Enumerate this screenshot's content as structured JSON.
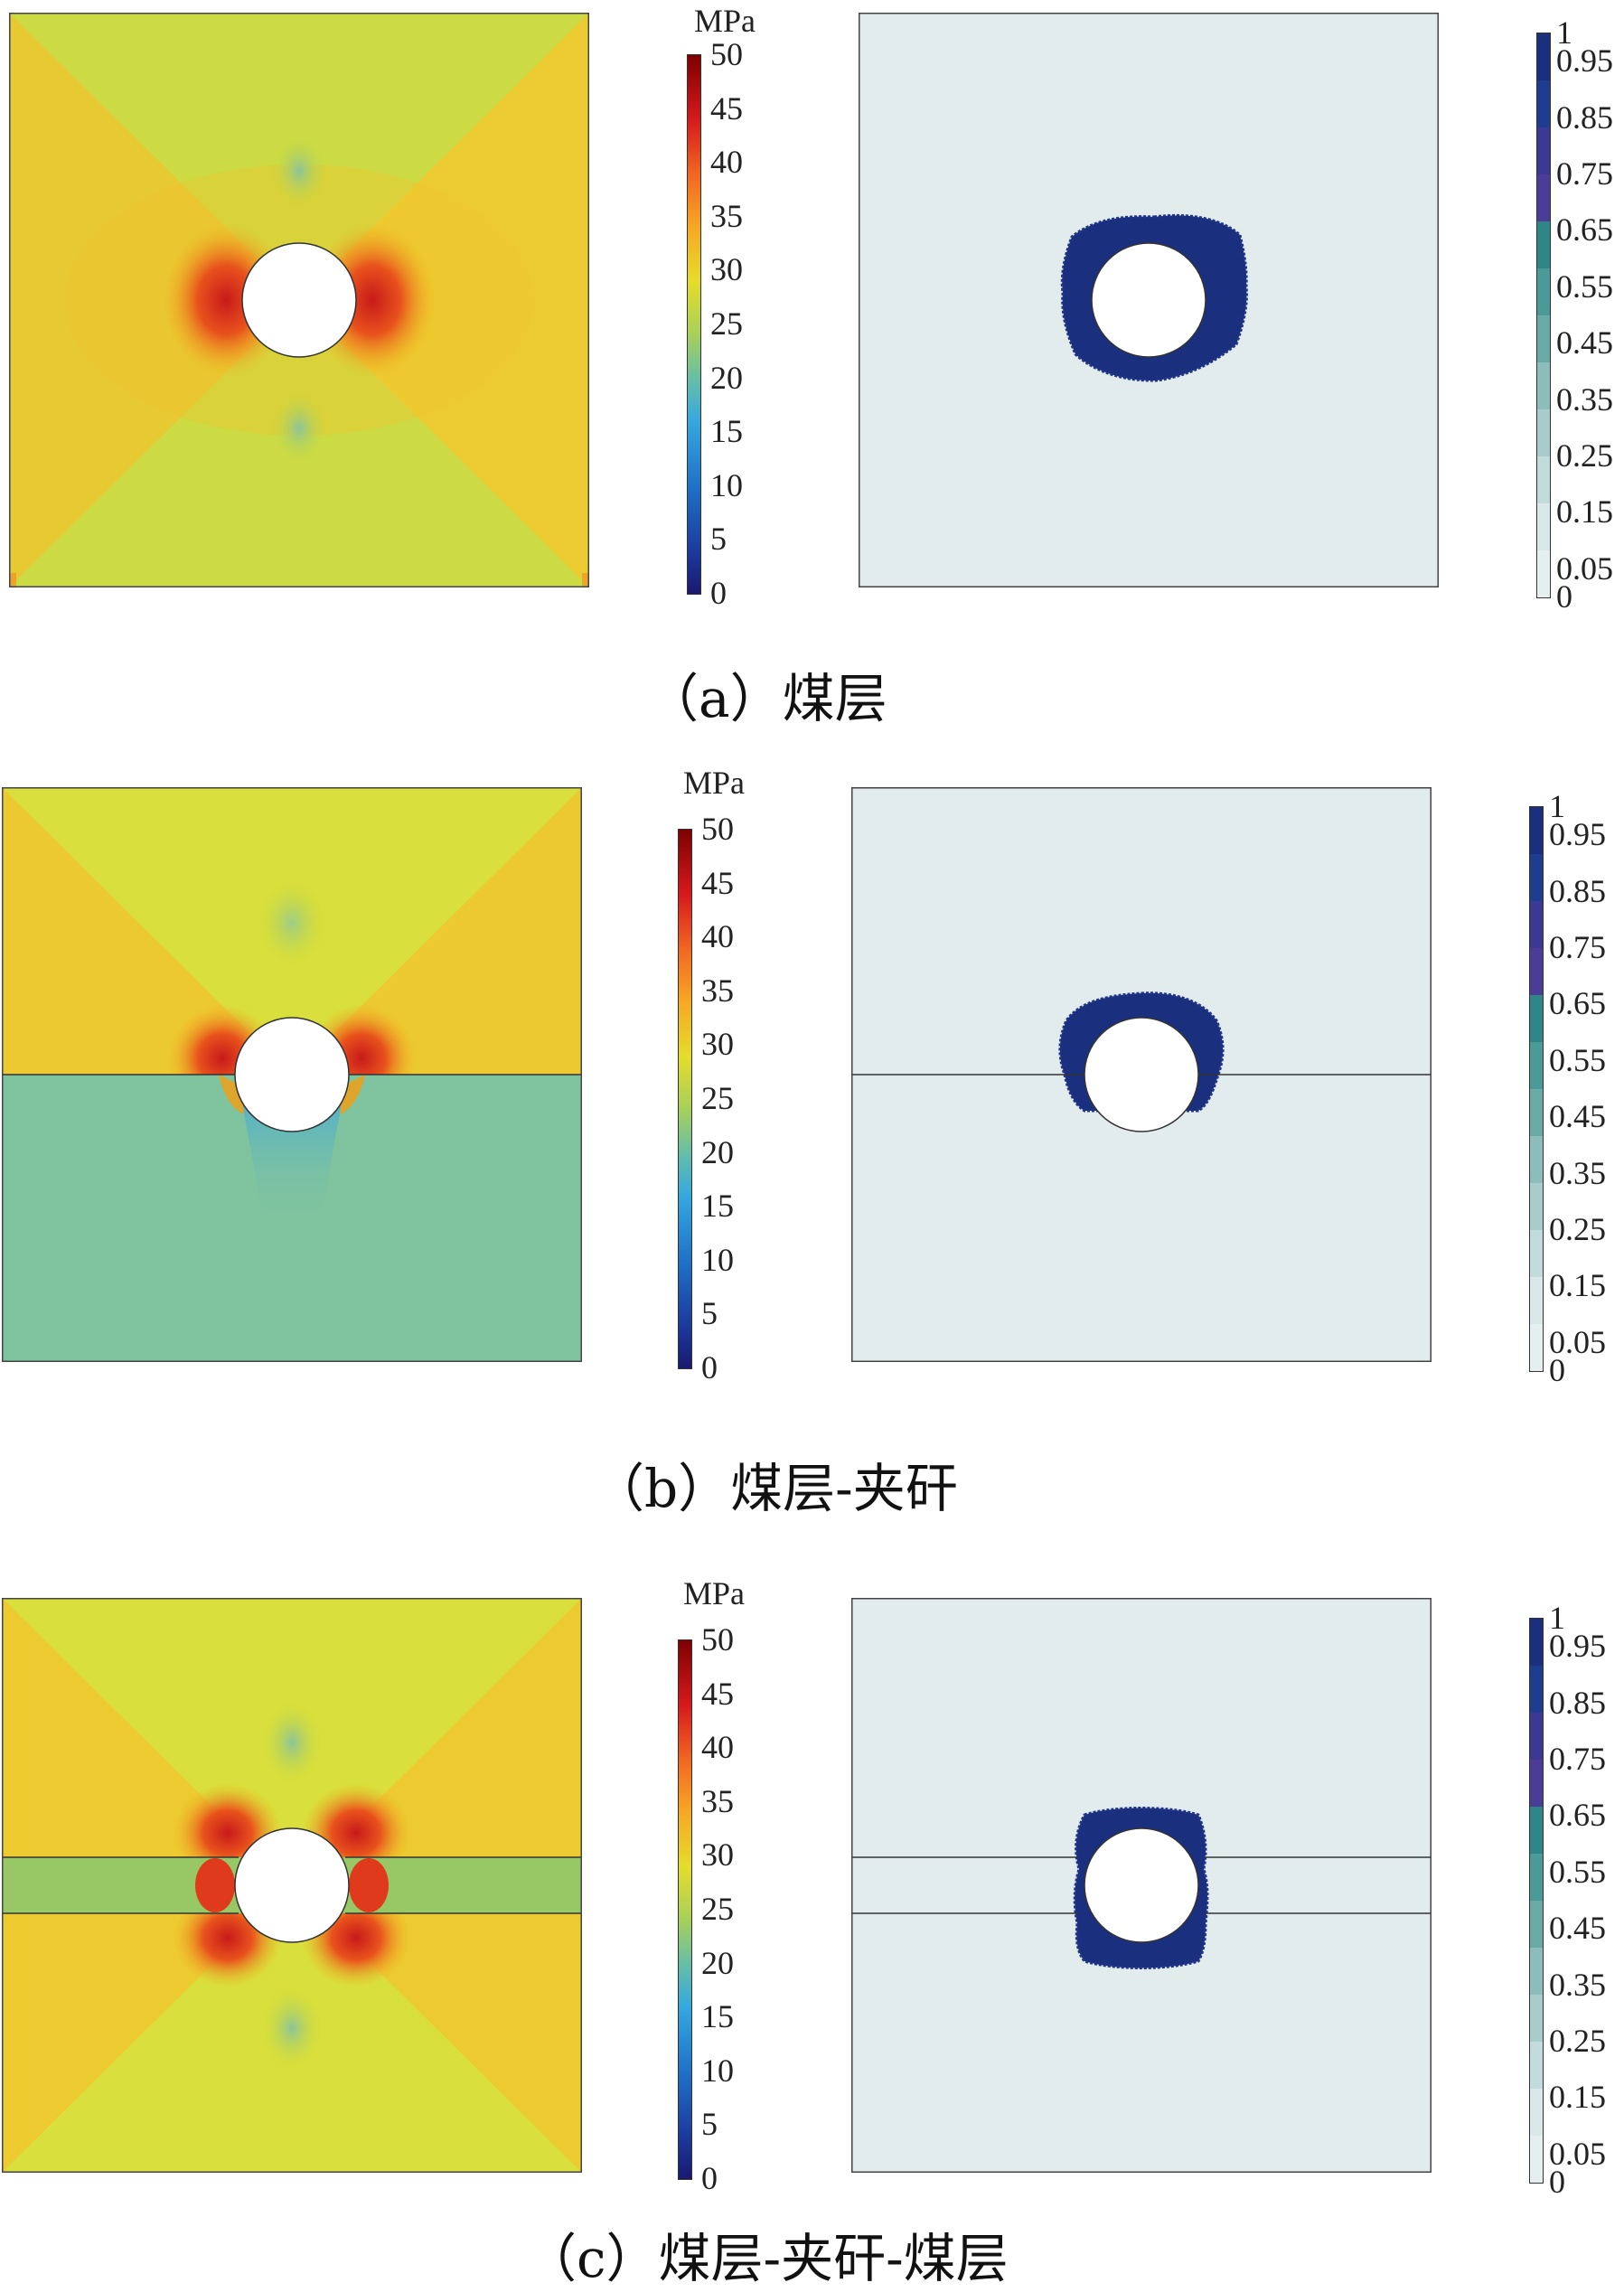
{
  "stress_colorbar": {
    "unit": "MPa",
    "ticks": [
      "50",
      "45",
      "40",
      "35",
      "30",
      "25",
      "20",
      "15",
      "10",
      "5",
      "0"
    ]
  },
  "damage_colorbar": {
    "ticks": [
      "1",
      "0.95",
      "0.85",
      "0.75",
      "0.65",
      "0.55",
      "0.45",
      "0.35",
      "0.25",
      "0.15",
      "0.05",
      "0"
    ]
  },
  "panels": [
    {
      "caption": "（a）煤层",
      "layering": "single seam"
    },
    {
      "caption": "（b）煤层-夹矸",
      "layering": "seam over parting"
    },
    {
      "caption": "（c）煤层-夹矸-煤层",
      "layering": "seam / parting / seam"
    }
  ]
}
